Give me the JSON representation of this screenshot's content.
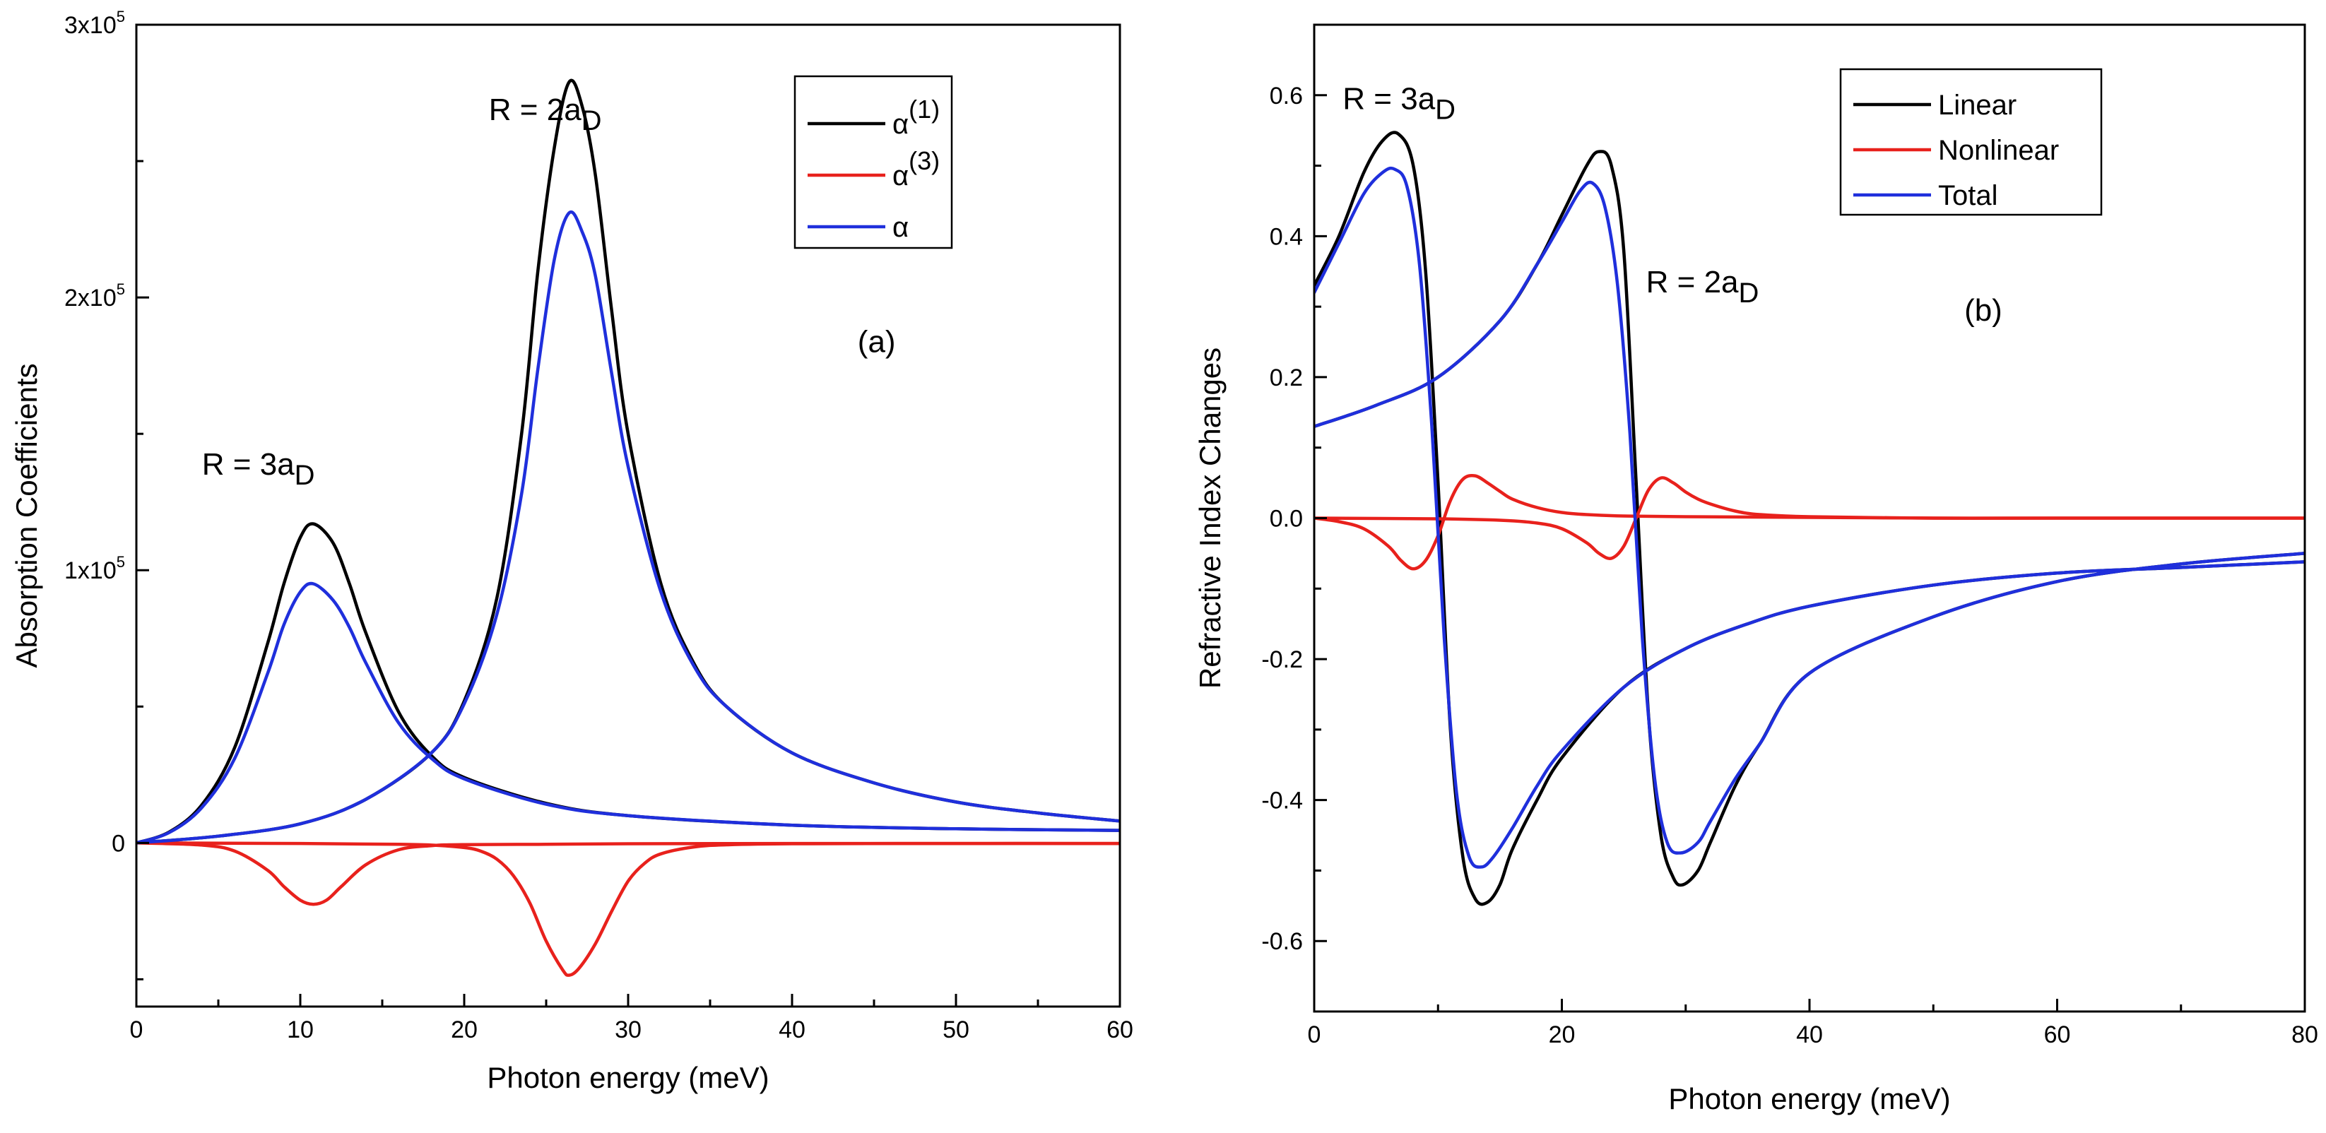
{
  "chart_data": [
    {
      "type": "line",
      "panel": "(a)",
      "xlabel": "Photon energy (meV)",
      "ylabel": "Absorption Coefficients",
      "xlim": [
        0,
        60
      ],
      "ylim": [
        -60000,
        300000
      ],
      "x_ticks": [
        0,
        10,
        20,
        30,
        40,
        50,
        60
      ],
      "y_ticks": [
        {
          "value": 0,
          "mantissa": "0",
          "exp": ""
        },
        {
          "value": 100000,
          "mantissa": "1x10",
          "exp": "5"
        },
        {
          "value": 200000,
          "mantissa": "2x10",
          "exp": "5"
        },
        {
          "value": 300000,
          "mantissa": "3x10",
          "exp": "5"
        }
      ],
      "annotations": [
        {
          "base": "R = 2a",
          "sub": "D",
          "x": 21.5,
          "y": 265000
        },
        {
          "base": "R = 3a",
          "sub": "D",
          "x": 4,
          "y": 135000
        },
        {
          "base": "(a)",
          "sub": "",
          "x": 44,
          "y": 180000
        }
      ],
      "legend": {
        "position": "top-right",
        "entries": [
          {
            "base": "α",
            "sup": "(1)",
            "color": "#000000"
          },
          {
            "base": "α",
            "sup": "(3)",
            "color": "#e8211c"
          },
          {
            "base": "α",
            "sup": "",
            "color": "#1f2fdc"
          }
        ]
      },
      "series": [
        {
          "name": "α(1) R = 3aD",
          "color": "#000000",
          "x": [
            0,
            2,
            4,
            6,
            8,
            9,
            10,
            10.8,
            12,
            13,
            14,
            16,
            18,
            20,
            25,
            30,
            40,
            50,
            60
          ],
          "y": [
            0,
            4000,
            14000,
            35000,
            73000,
            95000,
            112000,
            117000,
            110000,
            95000,
            77000,
            48000,
            32000,
            24000,
            14500,
            10000,
            6500,
            5200,
            4600
          ]
        },
        {
          "name": "α(1) R = 2aD",
          "color": "#000000",
          "x": [
            0,
            5,
            10,
            14,
            18,
            20,
            22,
            23.5,
            24.5,
            25.5,
            26.4,
            27.2,
            28,
            29,
            30,
            32,
            34,
            36,
            40,
            45,
            50,
            55,
            60
          ],
          "y": [
            0,
            2500,
            7000,
            16000,
            33000,
            52000,
            90000,
            150000,
            210000,
            255000,
            279000,
            270000,
            245000,
            195000,
            150000,
            95000,
            66000,
            50000,
            33000,
            22000,
            15000,
            11000,
            8000
          ]
        },
        {
          "name": "α(3) R = 3aD",
          "color": "#e8211c",
          "x": [
            0,
            4,
            6,
            8,
            9,
            10,
            10.8,
            11.6,
            12.5,
            14,
            16,
            18,
            20,
            25,
            30,
            40,
            50,
            60
          ],
          "y": [
            0,
            -800,
            -3000,
            -10000,
            -16000,
            -21000,
            -22500,
            -21000,
            -16000,
            -8000,
            -2500,
            -1000,
            -600,
            -500,
            -300,
            -200,
            -200,
            -200
          ]
        },
        {
          "name": "α(3) R = 2aD",
          "color": "#e8211c",
          "x": [
            0,
            10,
            16,
            18,
            20,
            21,
            22,
            23,
            24,
            25,
            26,
            26.4,
            27,
            28,
            29,
            30,
            31,
            32,
            34,
            36,
            40,
            50,
            60
          ],
          "y": [
            0,
            -200,
            -500,
            -800,
            -1700,
            -3000,
            -6000,
            -12000,
            -22000,
            -36000,
            -46500,
            -48500,
            -46000,
            -37000,
            -25000,
            -14000,
            -7500,
            -4000,
            -1500,
            -700,
            -300,
            -200,
            -200
          ]
        },
        {
          "name": "α R = 3aD",
          "color": "#1f2fdc",
          "x": [
            0,
            2,
            4,
            6,
            8,
            9,
            10,
            10.8,
            12,
            13,
            14,
            16,
            18,
            20,
            25,
            30,
            40,
            50,
            60
          ],
          "y": [
            0,
            3800,
            13000,
            31000,
            62000,
            80000,
            92000,
            95000,
            89000,
            79000,
            66000,
            44000,
            31000,
            23500,
            14200,
            10000,
            6500,
            5200,
            4600
          ]
        },
        {
          "name": "α R = 2aD",
          "color": "#1f2fdc",
          "x": [
            0,
            5,
            10,
            14,
            18,
            20,
            22,
            23.5,
            24.5,
            25.5,
            26.4,
            27.2,
            28,
            29,
            30,
            32,
            34,
            36,
            40,
            45,
            50,
            55,
            60
          ],
          "y": [
            0,
            2500,
            7000,
            16000,
            33000,
            51000,
            84000,
            128000,
            174000,
            214000,
            231000,
            224000,
            208000,
            172000,
            138000,
            92000,
            65000,
            50000,
            33000,
            22000,
            15000,
            11000,
            8000
          ]
        }
      ]
    },
    {
      "type": "line",
      "panel": "(b)",
      "xlabel": "Photon energy (meV)",
      "ylabel": "Refractive Index Changes",
      "xlim": [
        0,
        80
      ],
      "ylim": [
        -0.7,
        0.7
      ],
      "x_ticks": [
        0,
        20,
        40,
        60,
        80
      ],
      "y_ticks": [
        {
          "value": -0.6,
          "label": "-0.6"
        },
        {
          "value": -0.4,
          "label": "-0.4"
        },
        {
          "value": -0.2,
          "label": "-0.2"
        },
        {
          "value": 0.0,
          "label": "0.0"
        },
        {
          "value": 0.2,
          "label": "0.2"
        },
        {
          "value": 0.4,
          "label": "0.4"
        },
        {
          "value": 0.6,
          "label": "0.6"
        }
      ],
      "annotations": [
        {
          "base": "R = 3a",
          "sub": "D",
          "x": 2.3,
          "y": 0.58
        },
        {
          "base": "R = 2a",
          "sub": "D",
          "x": 26.8,
          "y": 0.32
        },
        {
          "base": "(b)",
          "sub": "",
          "x": 52.5,
          "y": 0.28
        }
      ],
      "legend": {
        "position": "top-right",
        "entries": [
          {
            "base": "Linear",
            "sup": "",
            "color": "#000000"
          },
          {
            "base": "Nonlinear",
            "sup": "",
            "color": "#e8211c"
          },
          {
            "base": "Total",
            "sup": "",
            "color": "#1f2fdc"
          }
        ]
      },
      "series": [
        {
          "name": "Linear R = 3aD",
          "color": "#000000",
          "x": [
            0,
            2,
            4,
            5.5,
            6.8,
            8,
            9,
            10,
            11,
            12,
            13,
            14,
            15,
            16,
            18,
            20,
            25,
            30,
            35,
            40,
            50,
            60,
            70,
            80
          ],
          "y": [
            0.33,
            0.4,
            0.49,
            0.535,
            0.545,
            0.5,
            0.35,
            0.05,
            -0.3,
            -0.48,
            -0.54,
            -0.545,
            -0.52,
            -0.47,
            -0.4,
            -0.34,
            -0.24,
            -0.185,
            -0.15,
            -0.125,
            -0.095,
            -0.078,
            -0.07,
            -0.062
          ]
        },
        {
          "name": "Linear R = 2aD",
          "color": "#000000",
          "x": [
            0,
            5,
            10,
            15,
            18,
            20,
            22,
            23,
            24,
            25,
            26,
            27,
            28,
            29,
            29.8,
            31,
            32,
            34,
            36,
            40,
            50,
            60,
            70,
            80
          ],
          "y": [
            0.13,
            0.16,
            0.2,
            0.28,
            0.36,
            0.43,
            0.5,
            0.52,
            0.5,
            0.38,
            0.05,
            -0.28,
            -0.45,
            -0.51,
            -0.52,
            -0.5,
            -0.46,
            -0.38,
            -0.32,
            -0.22,
            -0.14,
            -0.09,
            -0.065,
            -0.05
          ]
        },
        {
          "name": "Nonlinear R = 3aD",
          "color": "#e8211c",
          "x": [
            0,
            2,
            4,
            6,
            7,
            8,
            9,
            10,
            11,
            12,
            13,
            14,
            15,
            16,
            18,
            20,
            22,
            25,
            30,
            40,
            50,
            60,
            70,
            80
          ],
          "y": [
            0,
            -0.005,
            -0.015,
            -0.04,
            -0.06,
            -0.072,
            -0.06,
            -0.025,
            0.025,
            0.055,
            0.06,
            0.05,
            0.038,
            0.027,
            0.015,
            0.008,
            0.005,
            0.003,
            0.002,
            0.001,
            0,
            0,
            0,
            0
          ]
        },
        {
          "name": "Nonlinear R = 2aD",
          "color": "#e8211c",
          "x": [
            0,
            10,
            15,
            18,
            20,
            22,
            23,
            24,
            25,
            26,
            27,
            28,
            29,
            30,
            31,
            32,
            34,
            36,
            40,
            50,
            60,
            70,
            80
          ],
          "y": [
            0,
            -0.001,
            -0.003,
            -0.007,
            -0.015,
            -0.035,
            -0.05,
            -0.057,
            -0.04,
            0,
            0.04,
            0.057,
            0.05,
            0.037,
            0.027,
            0.02,
            0.01,
            0.005,
            0.002,
            0,
            0,
            0,
            0
          ]
        },
        {
          "name": "Total R = 3aD",
          "color": "#1f2fdc",
          "x": [
            0,
            2,
            4,
            5.5,
            6.5,
            7.5,
            8.5,
            9.5,
            10.5,
            11.5,
            12.5,
            13.5,
            14.5,
            16,
            18,
            20,
            25,
            30,
            35,
            40,
            50,
            60,
            70,
            80
          ],
          "y": [
            0.32,
            0.39,
            0.46,
            0.49,
            0.495,
            0.47,
            0.36,
            0.13,
            -0.17,
            -0.39,
            -0.48,
            -0.495,
            -0.48,
            -0.44,
            -0.38,
            -0.33,
            -0.24,
            -0.185,
            -0.15,
            -0.125,
            -0.095,
            -0.078,
            -0.07,
            -0.062
          ]
        },
        {
          "name": "Total R = 2aD",
          "color": "#1f2fdc",
          "x": [
            0,
            5,
            10,
            15,
            18,
            20,
            21.5,
            22.5,
            23.5,
            24.5,
            25.5,
            26.5,
            27.5,
            28.5,
            29.6,
            31,
            32,
            34,
            36,
            40,
            50,
            60,
            70,
            80
          ],
          "y": [
            0.13,
            0.16,
            0.2,
            0.28,
            0.36,
            0.42,
            0.465,
            0.475,
            0.44,
            0.33,
            0.12,
            -0.17,
            -0.37,
            -0.46,
            -0.475,
            -0.46,
            -0.43,
            -0.37,
            -0.32,
            -0.22,
            -0.14,
            -0.09,
            -0.065,
            -0.05
          ]
        }
      ]
    }
  ]
}
